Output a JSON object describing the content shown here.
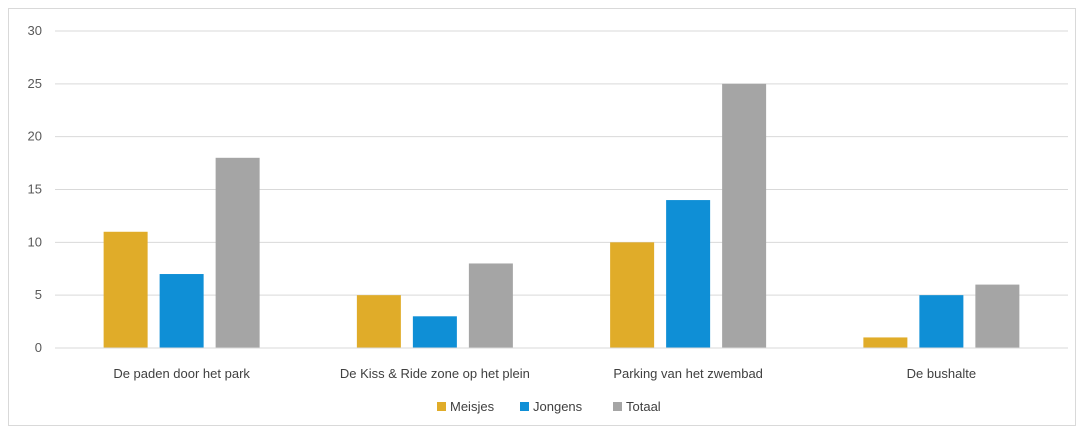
{
  "chart_data": {
    "type": "bar",
    "title": "",
    "xlabel": "",
    "ylabel": "",
    "ylim": [
      0,
      30
    ],
    "yticks": [
      0,
      5,
      10,
      15,
      20,
      25,
      30
    ],
    "grid": true,
    "legend_position": "bottom",
    "categories": [
      "De paden door het park",
      "De Kiss & Ride zone op het plein",
      "Parking van het zwembad",
      "De bushalte"
    ],
    "series": [
      {
        "name": "Meisjes",
        "color": "#e0ac29",
        "values": [
          11,
          5,
          10,
          1
        ]
      },
      {
        "name": "Jongens",
        "color": "#0f8fd6",
        "values": [
          7,
          3,
          14,
          5
        ]
      },
      {
        "name": "Totaal",
        "color": "#a5a5a5",
        "values": [
          18,
          8,
          25,
          6
        ]
      }
    ]
  }
}
